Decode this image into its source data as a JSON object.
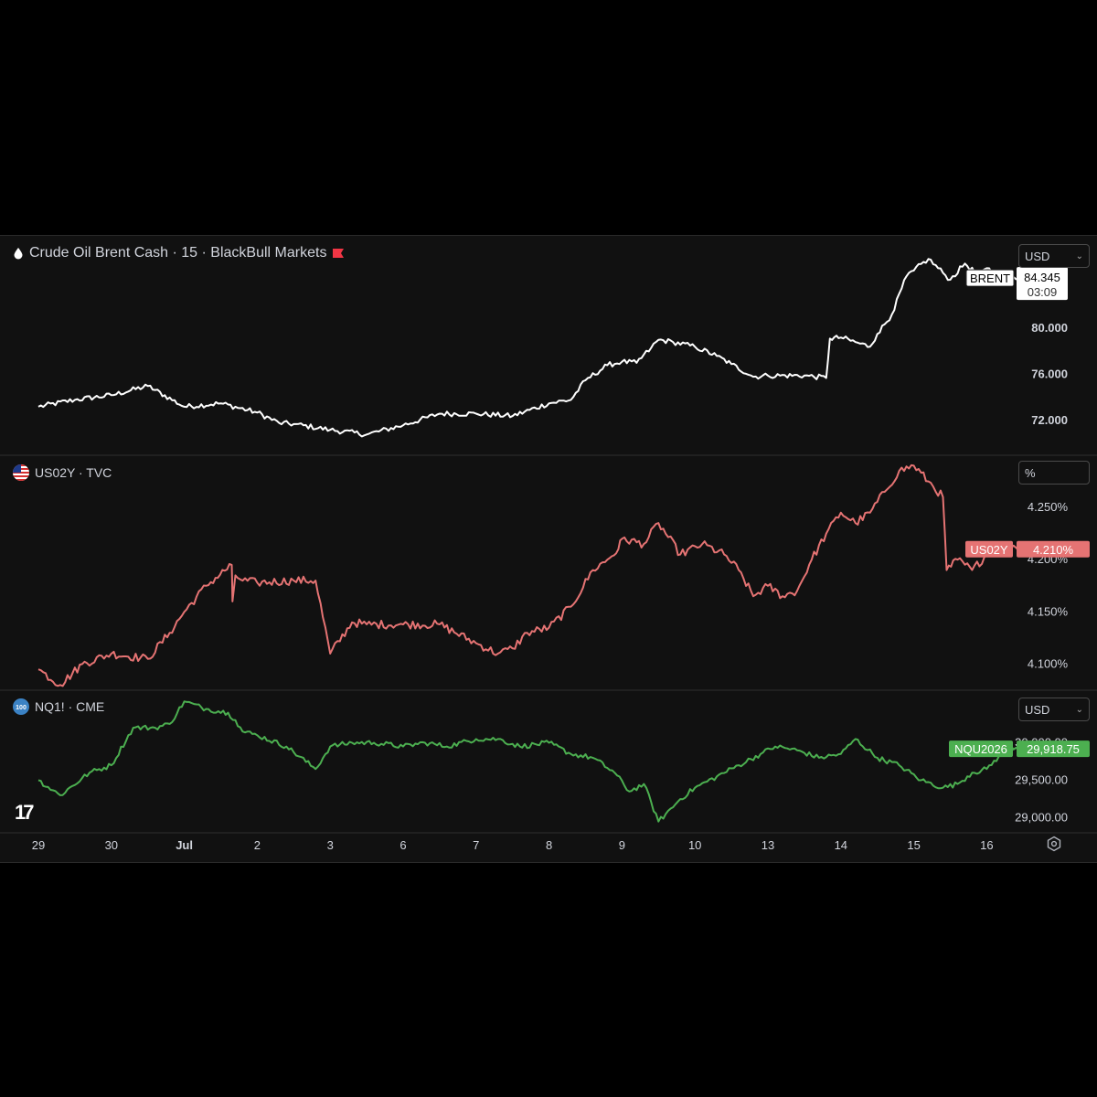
{
  "panes": [
    {
      "id": "brent",
      "title": "Crude Oil Brent Cash · 15 · BlackBull Markets",
      "unit": "USD",
      "color": "#ffffff",
      "ylim": [
        69,
        88
      ],
      "ticks": [
        72,
        76,
        80
      ],
      "tick_labels": [
        "72.000",
        "76.000",
        "80.000"
      ],
      "last_label": "BRENT",
      "last_value": "84.345",
      "countdown": "03:09",
      "last_numeric": 84.345
    },
    {
      "id": "us02y",
      "title": "US02Y · TVC",
      "unit": "%",
      "color": "#e57373",
      "ylim": [
        4.075,
        4.3
      ],
      "ticks": [
        4.1,
        4.15,
        4.2,
        4.25
      ],
      "tick_labels": [
        "4.100%",
        "4.150%",
        "4.200%",
        "4.250%"
      ],
      "last_label": "US02Y",
      "last_value": "4.210%",
      "last_numeric": 4.21
    },
    {
      "id": "nq",
      "title": "NQ1! · CME",
      "unit": "USD",
      "color": "#4caf50",
      "ylim": [
        28800,
        30700
      ],
      "ticks": [
        29000,
        29500,
        30000
      ],
      "tick_labels": [
        "29,000.00",
        "29,500.00",
        "30,000.00"
      ],
      "last_label": "NQU2026",
      "last_value": "29,918.75",
      "last_numeric": 29918.75
    }
  ],
  "x_axis": {
    "labels": [
      "29",
      "30",
      "Jul",
      "2",
      "3",
      "6",
      "7",
      "8",
      "9",
      "10",
      "13",
      "14",
      "15",
      "16"
    ]
  },
  "chart_data": [
    {
      "type": "line",
      "title": "Crude Oil Brent Cash · 15 · BlackBull Markets",
      "categories": [
        "29",
        "30",
        "Jul",
        "2",
        "3",
        "6",
        "7",
        "8",
        "9",
        "10",
        "13",
        "14",
        "15",
        "16"
      ],
      "series": [
        {
          "name": "BRENT",
          "x": [
            0,
            0.5,
            1,
            1.5,
            2,
            2.5,
            3,
            3.3,
            3.5,
            4,
            4.5,
            5,
            5.5,
            6,
            6.5,
            7,
            7.3,
            7.5,
            7.8,
            8,
            8.2,
            8.4,
            8.5,
            8.7,
            9,
            9.3,
            9.5,
            9.8,
            10,
            10.5,
            10.8,
            10.85,
            11,
            11.2,
            11.4,
            11.5,
            11.7,
            11.9,
            12,
            12.2,
            12.4,
            12.5,
            12.7,
            12.9,
            13,
            13.2,
            13.5
          ],
          "values": [
            73.2,
            73.8,
            74.2,
            75.0,
            73.2,
            73.5,
            72.7,
            71.8,
            71.7,
            71.2,
            70.8,
            71.6,
            72.6,
            72.6,
            72.4,
            73.5,
            73.8,
            75.5,
            76.8,
            77.1,
            77.0,
            78.3,
            79.0,
            78.8,
            78.4,
            77.6,
            76.9,
            75.8,
            75.9,
            75.9,
            75.7,
            79.1,
            79.2,
            78.8,
            78.4,
            79.5,
            81.2,
            84.5,
            85.0,
            86.0,
            84.8,
            84.2,
            85.6,
            84.5,
            85.2,
            84.4,
            84.345
          ]
        }
      ],
      "ylim": [
        69,
        88
      ]
    },
    {
      "type": "line",
      "title": "US02Y · TVC",
      "categories": [
        "29",
        "30",
        "Jul",
        "2",
        "3",
        "6",
        "7",
        "8",
        "9",
        "10",
        "13",
        "14",
        "15",
        "16"
      ],
      "series": [
        {
          "name": "US02Y",
          "x": [
            0,
            0.3,
            0.6,
            1,
            1.5,
            1.8,
            2,
            2.3,
            2.65,
            2.66,
            2.7,
            2.8,
            3,
            3.5,
            3.8,
            4,
            4.3,
            4.5,
            5,
            5.5,
            6,
            6.3,
            6.5,
            6.7,
            7,
            7.3,
            7.6,
            7.8,
            7.95,
            8,
            8.3,
            8.5,
            8.8,
            9.1,
            9.4,
            9.6,
            9.8,
            10,
            10.2,
            10.4,
            10.6,
            10.8,
            11,
            11.2,
            11.4,
            11.6,
            11.8,
            12,
            12.2,
            12.4,
            12.45,
            12.6,
            12.8,
            13,
            13.3,
            13.5
          ],
          "values": [
            4.095,
            4.08,
            4.1,
            4.11,
            4.105,
            4.13,
            4.15,
            4.175,
            4.195,
            4.16,
            4.185,
            4.18,
            4.178,
            4.18,
            4.18,
            4.11,
            4.14,
            4.138,
            4.138,
            4.138,
            4.12,
            4.11,
            4.115,
            4.13,
            4.135,
            4.155,
            4.19,
            4.2,
            4.21,
            4.22,
            4.215,
            4.235,
            4.205,
            4.215,
            4.205,
            4.19,
            4.165,
            4.175,
            4.165,
            4.17,
            4.2,
            4.225,
            4.245,
            4.235,
            4.245,
            4.265,
            4.285,
            4.29,
            4.275,
            4.26,
            4.19,
            4.2,
            4.19,
            4.205,
            4.215,
            4.21
          ]
        }
      ],
      "ylim": [
        4.075,
        4.3
      ]
    },
    {
      "type": "line",
      "title": "NQ1! · CME",
      "categories": [
        "29",
        "30",
        "Jul",
        "2",
        "3",
        "6",
        "7",
        "8",
        "9",
        "10",
        "13",
        "14",
        "15",
        "16"
      ],
      "series": [
        {
          "name": "NQU2026",
          "x": [
            0,
            0.3,
            0.7,
            1,
            1.3,
            1.6,
            1.8,
            2,
            2.3,
            2.6,
            2.7,
            2.8,
            3,
            3.4,
            3.8,
            4,
            4.3,
            4.6,
            5,
            5.3,
            5.6,
            6,
            6.3,
            6.6,
            7,
            7.3,
            7.6,
            7.9,
            8.1,
            8.3,
            8.5,
            8.8,
            9,
            9.3,
            9.6,
            9.9,
            10.1,
            10.4,
            10.7,
            11,
            11.2,
            11.5,
            11.8,
            12.1,
            12.4,
            12.6,
            12.8,
            13,
            13.3,
            13.5
          ],
          "values": [
            29500,
            29300,
            29600,
            29700,
            30200,
            30200,
            30250,
            30550,
            30450,
            30400,
            30300,
            30150,
            30100,
            29950,
            29650,
            29950,
            30000,
            30000,
            29950,
            30000,
            29950,
            30050,
            30050,
            29950,
            30000,
            29850,
            29800,
            29600,
            29350,
            29450,
            28950,
            29250,
            29400,
            29550,
            29700,
            29850,
            29950,
            29900,
            29800,
            29850,
            30050,
            29800,
            29700,
            29500,
            29400,
            29450,
            29600,
            29650,
            29950,
            29918.75
          ]
        }
      ],
      "ylim": [
        28800,
        30700
      ]
    }
  ]
}
